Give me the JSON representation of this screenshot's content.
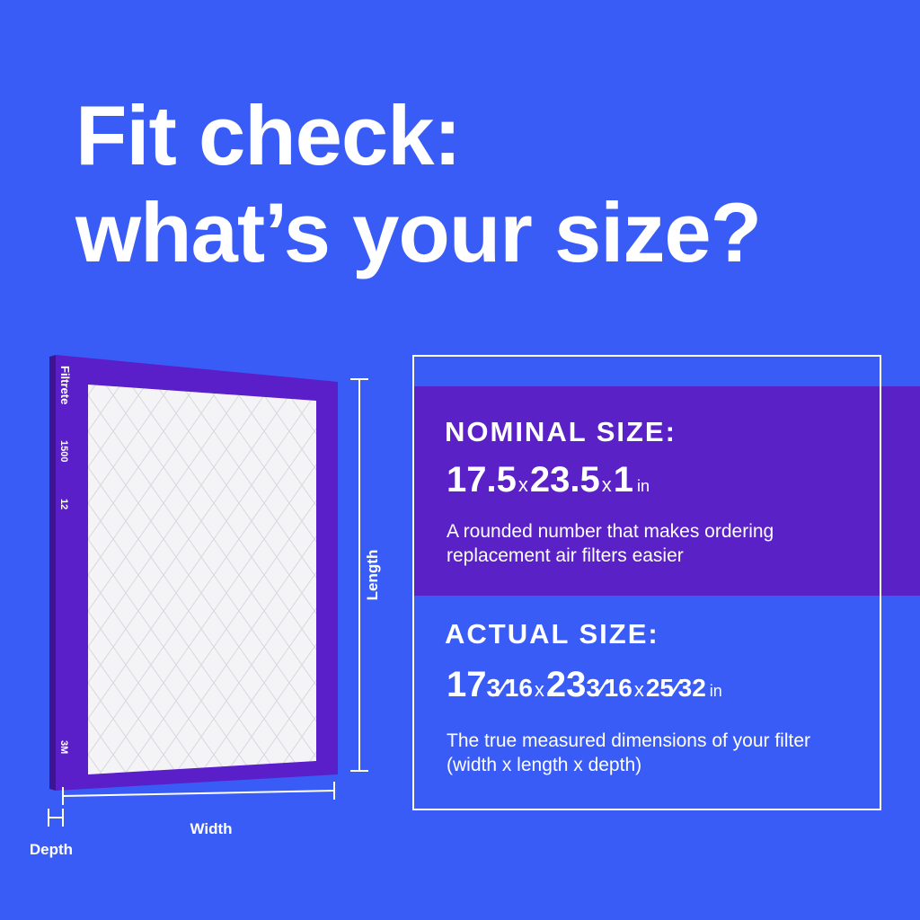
{
  "title": {
    "line1": "Fit check:",
    "line2": "what’s your size?"
  },
  "filter": {
    "brand": "Filtrete",
    "rating": "1500",
    "pack": "12",
    "maker": "3M"
  },
  "dimensions": {
    "length": "Length",
    "width": "Width",
    "depth": "Depth"
  },
  "nominal": {
    "heading": "NOMINAL SIZE:",
    "size": [
      "17.5",
      "x",
      "23.5",
      "x",
      "1",
      "in"
    ],
    "description": "A rounded number that makes ordering replacement air filters easier"
  },
  "actual": {
    "heading": "ACTUAL SIZE:",
    "size": [
      "17",
      "3⁄16",
      "x",
      "23",
      "3⁄16",
      "x",
      "25⁄32",
      "in"
    ],
    "description": "The true measured dimensions of your filter (width x length x depth)"
  }
}
